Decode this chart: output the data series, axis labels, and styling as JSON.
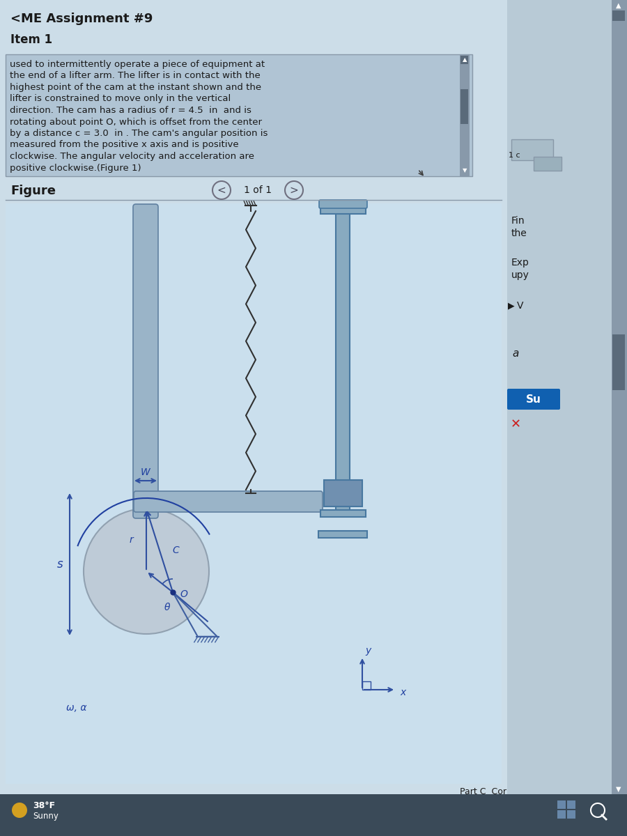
{
  "title": "<ME Assignment #9",
  "item": "Item 1",
  "text_lines": [
    "used to intermittently operate a piece of equipment at",
    "the end of a lifter arm. The lifter is in contact with the",
    "highest point of the cam at the instant shown and the",
    "lifter is constrained to move only in the vertical",
    "direction. The cam has a radius of r = 4.5  in  and is",
    "rotating about point O, which is offset from the center",
    "by a distance c = 3.0  in . The cam's angular position is",
    "measured from the positive x axis and is positive",
    "clockwise. The angular velocity and acceleration are",
    "positive clockwise.(Figure 1)"
  ],
  "figure_label": "Figure",
  "nav_text": "1 of 1",
  "bg_color": "#c5d5e0",
  "main_bg": "#ccdde8",
  "text_box_bg": "#b0c4d4",
  "right_panel_bg": "#b8cad6",
  "scrollbar_bg": "#8899aa",
  "scrollbar_thumb": "#5a6a7a",
  "figure_bg": "#cce0ec",
  "cam_face": "#bcc8d4",
  "cam_edge": "#8898a8",
  "arm_face": "#9ab4c8",
  "arm_edge": "#6080a0",
  "lifter_face": "#88aac0",
  "lifter_edge": "#4878a0",
  "lifter_block_face": "#7090b0",
  "dim_color": "#3050a0",
  "label_color": "#2040a0",
  "text_color": "#1a1a1a",
  "taskbar_bg": "#3a4a58",
  "sun_color": "#d4a020",
  "submit_btn": "#1060b0",
  "x_btn_color": "#cc2020",
  "spring_color": "#303030",
  "ground_color": "#4060a0",
  "title_fontsize": 13,
  "item_fontsize": 12,
  "body_fontsize": 9.5,
  "nav_fontsize": 10,
  "label_fontsize": 10
}
